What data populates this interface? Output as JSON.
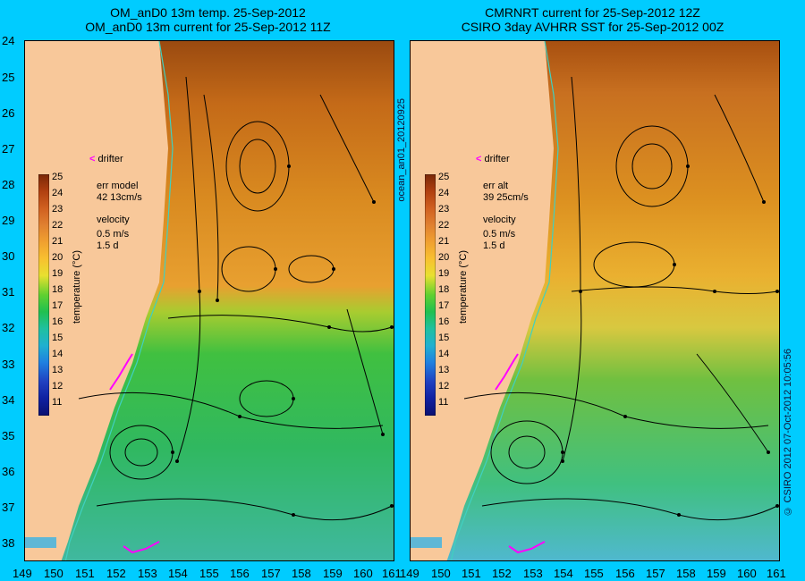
{
  "left_panel": {
    "title_line1": "OM_anD0 13m temp. 25-Sep-2012",
    "title_line2": "OM_anD0 13m current for 25-Sep-2012 11Z",
    "err_label": "err model",
    "err_value": "42 13cm/s"
  },
  "right_panel": {
    "title_line1": "CMRNRT current for 25-Sep-2012 12Z",
    "title_line2": "CSIRO 3day AVHRR SST for 25-Sep-2012 00Z",
    "err_label": "err alt",
    "err_value": "39 25cm/s"
  },
  "legend": {
    "drifter_label": "drifter",
    "velocity_label": "velocity",
    "velocity_scale": "0.5 m/s",
    "velocity_time": "1.5 d",
    "colorbar_title": "temperature (°C)",
    "colorbar_ticks": [
      "25",
      "24",
      "23",
      "22",
      "21",
      "20",
      "19",
      "18",
      "17",
      "16",
      "15",
      "14",
      "13",
      "12",
      "11"
    ]
  },
  "axes": {
    "y_ticks": [
      "24",
      "25",
      "26",
      "27",
      "28",
      "29",
      "30",
      "31",
      "32",
      "33",
      "34",
      "35",
      "36",
      "37",
      "38"
    ],
    "x_ticks": [
      "149",
      "150",
      "151",
      "152",
      "153",
      "154",
      "155",
      "156",
      "157",
      "158",
      "159",
      "160",
      "161"
    ]
  },
  "side_labels": {
    "middle": "ocean_an01_20120925",
    "right": "© CSIRO 2012  07-Oct-2012 10:05:56"
  },
  "colors": {
    "background": "#00ccff",
    "land": "#f8c89a",
    "coastline": "#40d0c0",
    "drifter": "#ff00ff",
    "arrows": "#000000"
  }
}
